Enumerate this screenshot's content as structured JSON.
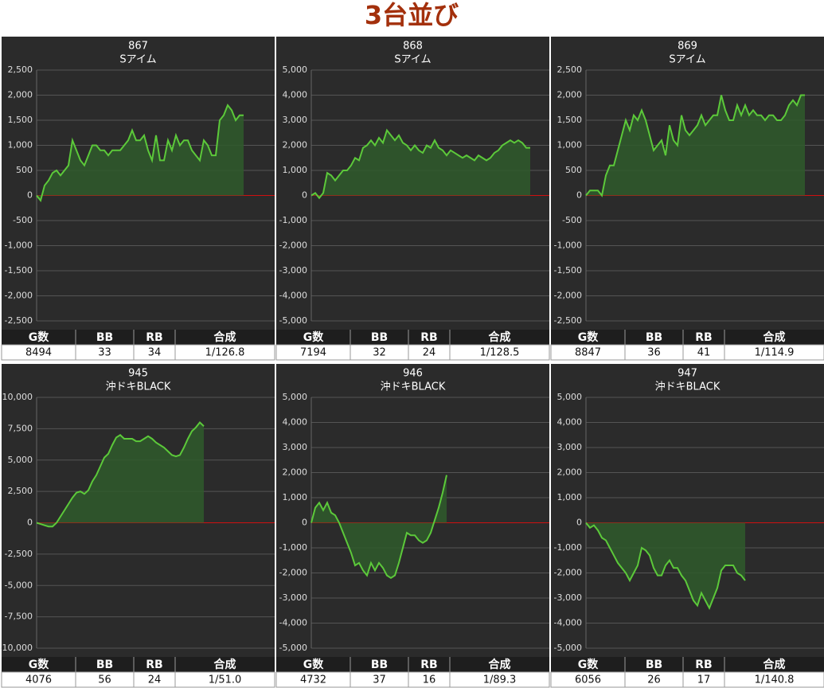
{
  "title": "3台並び",
  "chart_data": [
    {
      "type": "line",
      "title": "867",
      "subtitle": "Sアイム",
      "color": "#5cc93a",
      "grid": true,
      "values": [
        0,
        -100,
        200,
        300,
        450,
        500,
        400,
        500,
        600,
        1100,
        900,
        700,
        600,
        800,
        1000,
        1000,
        900,
        900,
        800,
        900,
        900,
        900,
        1000,
        1100,
        1300,
        1100,
        1100,
        1200,
        900,
        700,
        1200,
        700,
        700,
        1100,
        900,
        1200,
        1000,
        1100,
        1100,
        900,
        800,
        700,
        1100,
        1000,
        800,
        800,
        1500,
        1600,
        1800,
        1700,
        1500,
        1600,
        1600
      ],
      "ylim": [
        -2500,
        2500
      ],
      "yticks": [
        {
          "value": 2500,
          "label": "2,500"
        },
        {
          "value": 2000,
          "label": "2,000"
        },
        {
          "value": 1500,
          "label": "1,500"
        },
        {
          "value": 1000,
          "label": "1,000"
        },
        500,
        0,
        -500,
        {
          "value": -1000,
          "label": "-1,000"
        },
        {
          "value": -1500,
          "label": "-1,500"
        },
        {
          "value": -2000,
          "label": "-2,000"
        },
        {
          "value": -2500,
          "label": "-2,500"
        }
      ],
      "table": {
        "headers": [
          "G数",
          "BB",
          "RB",
          "合成"
        ],
        "values": [
          8494,
          33,
          34,
          "1/126.8"
        ]
      }
    },
    {
      "type": "line",
      "title": "868",
      "subtitle": "Sアイム",
      "color": "#5cc93a",
      "grid": true,
      "values": [
        0,
        100,
        -100,
        100,
        900,
        800,
        600,
        800,
        1000,
        1000,
        1200,
        1500,
        1400,
        1900,
        2000,
        2200,
        2000,
        2300,
        2100,
        2600,
        2400,
        2200,
        2400,
        2100,
        2000,
        1800,
        2000,
        1800,
        1700,
        2000,
        1900,
        2200,
        1900,
        1800,
        1600,
        1800,
        1700,
        1600,
        1500,
        1600,
        1500,
        1400,
        1600,
        1500,
        1400,
        1500,
        1700,
        1800,
        2000,
        2100,
        2200,
        2100,
        2200,
        2100,
        1900,
        1900
      ],
      "ylim": [
        -5000,
        5000
      ],
      "yticks": [
        {
          "value": 5000,
          "label": "5,000"
        },
        {
          "value": 4000,
          "label": "4,000"
        },
        {
          "value": 3000,
          "label": "3,000"
        },
        {
          "value": 2000,
          "label": "2,000"
        },
        {
          "value": 1000,
          "label": "1,000"
        },
        0,
        {
          "value": -1000,
          "label": "-1,000"
        },
        {
          "value": -2000,
          "label": "-2,000"
        },
        {
          "value": -3000,
          "label": "-3,000"
        },
        {
          "value": -4000,
          "label": "-4,000"
        },
        {
          "value": -5000,
          "label": "-5,000"
        }
      ],
      "table": {
        "headers": [
          "G数",
          "BB",
          "RB",
          "合成"
        ],
        "values": [
          7194,
          32,
          24,
          "1/128.5"
        ]
      }
    },
    {
      "type": "line",
      "title": "869",
      "subtitle": "Sアイム",
      "color": "#5cc93a",
      "grid": true,
      "values": [
        0,
        100,
        100,
        100,
        0,
        400,
        600,
        600,
        900,
        1200,
        1500,
        1300,
        1600,
        1500,
        1700,
        1500,
        1200,
        900,
        1000,
        1100,
        800,
        1400,
        1100,
        1000,
        1600,
        1300,
        1200,
        1300,
        1400,
        1600,
        1400,
        1500,
        1600,
        1600,
        2000,
        1700,
        1500,
        1500,
        1800,
        1600,
        1800,
        1600,
        1700,
        1600,
        1600,
        1500,
        1600,
        1600,
        1500,
        1500,
        1600,
        1800,
        1900,
        1800,
        2000,
        2000
      ],
      "ylim": [
        -2500,
        2500
      ],
      "yticks": [
        {
          "value": 2500,
          "label": "2,500"
        },
        {
          "value": 2000,
          "label": "2,000"
        },
        {
          "value": 1500,
          "label": "1,500"
        },
        {
          "value": 1000,
          "label": "1,000"
        },
        500,
        0,
        -500,
        {
          "value": -1000,
          "label": "-1,000"
        },
        {
          "value": -1500,
          "label": "-1,500"
        },
        {
          "value": -2000,
          "label": "-2,000"
        },
        {
          "value": -2500,
          "label": "-2,500"
        }
      ],
      "table": {
        "headers": [
          "G数",
          "BB",
          "RB",
          "合成"
        ],
        "values": [
          8847,
          36,
          41,
          "1/114.9"
        ]
      }
    },
    {
      "type": "line",
      "title": "945",
      "subtitle": "沖ドキBLACK",
      "color": "#5cc93a",
      "grid": true,
      "values": [
        0,
        -100,
        -200,
        -300,
        -300,
        0,
        500,
        1000,
        1500,
        2000,
        2400,
        2500,
        2300,
        2600,
        3300,
        3800,
        4500,
        5200,
        5500,
        6200,
        6800,
        7000,
        6700,
        6700,
        6700,
        6500,
        6500,
        6700,
        6900,
        6700,
        6400,
        6200,
        6000,
        5700,
        5400,
        5300,
        5400,
        6000,
        6700,
        7300,
        7600,
        8000,
        7700
      ],
      "ylim": [
        -10000,
        10000
      ],
      "yticks": [
        {
          "value": 10000,
          "label": "10,000"
        },
        {
          "value": 7500,
          "label": "7,500"
        },
        {
          "value": 5000,
          "label": "5,000"
        },
        {
          "value": 2500,
          "label": "2,500"
        },
        0,
        {
          "value": -2500,
          "label": "-2,500"
        },
        {
          "value": -5000,
          "label": "-5,000"
        },
        {
          "value": -7500,
          "label": "-7,500"
        },
        {
          "value": -10000,
          "label": "-10,000"
        }
      ],
      "table": {
        "headers": [
          "G数",
          "BB",
          "RB",
          "合成"
        ],
        "values": [
          4076,
          56,
          24,
          "1/51.0"
        ]
      }
    },
    {
      "type": "line",
      "title": "946",
      "subtitle": "沖ドキBLACK",
      "color": "#5cc93a",
      "grid": true,
      "values": [
        0,
        600,
        800,
        500,
        800,
        400,
        300,
        0,
        -400,
        -800,
        -1200,
        -1700,
        -1600,
        -1900,
        -2100,
        -1600,
        -1900,
        -1600,
        -1800,
        -2100,
        -2200,
        -2100,
        -1600,
        -1000,
        -400,
        -500,
        -500,
        -700,
        -800,
        -700,
        -400,
        100,
        600,
        1200,
        1900
      ],
      "ylim": [
        -5000,
        5000
      ],
      "yticks": [
        {
          "value": 5000,
          "label": "5,000"
        },
        {
          "value": 4000,
          "label": "4,000"
        },
        {
          "value": 3000,
          "label": "3,000"
        },
        {
          "value": 2000,
          "label": "2,000"
        },
        {
          "value": 1000,
          "label": "1,000"
        },
        0,
        {
          "value": -1000,
          "label": "-1,000"
        },
        {
          "value": -2000,
          "label": "-2,000"
        },
        {
          "value": -3000,
          "label": "-3,000"
        },
        {
          "value": -4000,
          "label": "-4,000"
        },
        {
          "value": -5000,
          "label": "-5,000"
        }
      ],
      "table": {
        "headers": [
          "G数",
          "BB",
          "RB",
          "合成"
        ],
        "values": [
          4732,
          37,
          16,
          "1/89.3"
        ]
      }
    },
    {
      "type": "line",
      "title": "947",
      "subtitle": "沖ドキBLACK",
      "color": "#5cc93a",
      "grid": true,
      "values": [
        0,
        -200,
        -100,
        -300,
        -600,
        -700,
        -1000,
        -1300,
        -1600,
        -1800,
        -2000,
        -2300,
        -2000,
        -1700,
        -1000,
        -1100,
        -1300,
        -1800,
        -2100,
        -2100,
        -1700,
        -1500,
        -1800,
        -1800,
        -2100,
        -2300,
        -2700,
        -3100,
        -3300,
        -2800,
        -3100,
        -3400,
        -3000,
        -2600,
        -1900,
        -1700,
        -1700,
        -1700,
        -2000,
        -2100,
        -2300
      ],
      "ylim": [
        -5000,
        5000
      ],
      "yticks": [
        {
          "value": 5000,
          "label": "5,000"
        },
        {
          "value": 4000,
          "label": "4,000"
        },
        {
          "value": 3000,
          "label": "3,000"
        },
        {
          "value": 2000,
          "label": "2,000"
        },
        {
          "value": 1000,
          "label": "1,000"
        },
        0,
        {
          "value": -1000,
          "label": "-1,000"
        },
        {
          "value": -2000,
          "label": "-2,000"
        },
        {
          "value": -3000,
          "label": "-3,000"
        },
        {
          "value": -4000,
          "label": "-4,000"
        },
        {
          "value": -5000,
          "label": "-5,000"
        }
      ],
      "table": {
        "headers": [
          "G数",
          "BB",
          "RB",
          "合成"
        ],
        "values": [
          6056,
          26,
          17,
          "1/140.8"
        ]
      }
    }
  ]
}
